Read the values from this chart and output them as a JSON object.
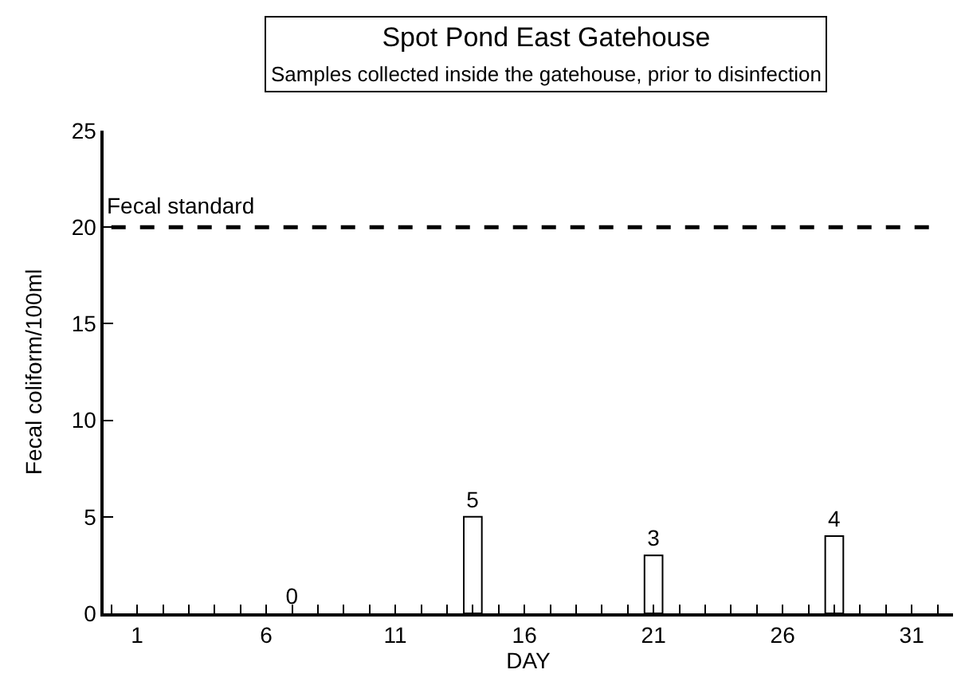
{
  "chart_data": {
    "type": "bar",
    "title": "Spot Pond East Gatehouse",
    "subtitle": "Samples collected inside the gatehouse, prior to disinfection",
    "xlabel": "DAY",
    "ylabel": "Fecal coliform/100ml",
    "x": [
      7,
      14,
      21,
      28
    ],
    "values": [
      0,
      5,
      3,
      4
    ],
    "color": "#ffffff",
    "data_labels": true,
    "xlim": [
      -0.3,
      32.6
    ],
    "ylim": [
      0,
      25
    ],
    "xticks": [
      {
        "value": 0,
        "label": null
      },
      1,
      {
        "value": 2,
        "label": null
      },
      {
        "value": 3,
        "label": null
      },
      {
        "value": 4,
        "label": null
      },
      {
        "value": 5,
        "label": null
      },
      6,
      {
        "value": 7,
        "label": null
      },
      {
        "value": 8,
        "label": null
      },
      {
        "value": 9,
        "label": null
      },
      {
        "value": 10,
        "label": null
      },
      11,
      {
        "value": 12,
        "label": null
      },
      {
        "value": 13,
        "label": null
      },
      {
        "value": 14,
        "label": null
      },
      {
        "value": 15,
        "label": null
      },
      16,
      {
        "value": 17,
        "label": null
      },
      {
        "value": 18,
        "label": null
      },
      {
        "value": 19,
        "label": null
      },
      {
        "value": 20,
        "label": null
      },
      21,
      {
        "value": 22,
        "label": null
      },
      {
        "value": 23,
        "label": null
      },
      {
        "value": 24,
        "label": null
      },
      {
        "value": 25,
        "label": null
      },
      26,
      {
        "value": 27,
        "label": null
      },
      {
        "value": 28,
        "label": null
      },
      {
        "value": 29,
        "label": null
      },
      {
        "value": 30,
        "label": null
      },
      31,
      {
        "value": 32,
        "label": null
      }
    ],
    "yticks": [
      0,
      5,
      10,
      15,
      20,
      25
    ],
    "ref_lines": [
      {
        "axis": "y",
        "value": 20,
        "label": "Fecal standard",
        "color": "#000000",
        "line_style": "dashed"
      }
    ]
  }
}
